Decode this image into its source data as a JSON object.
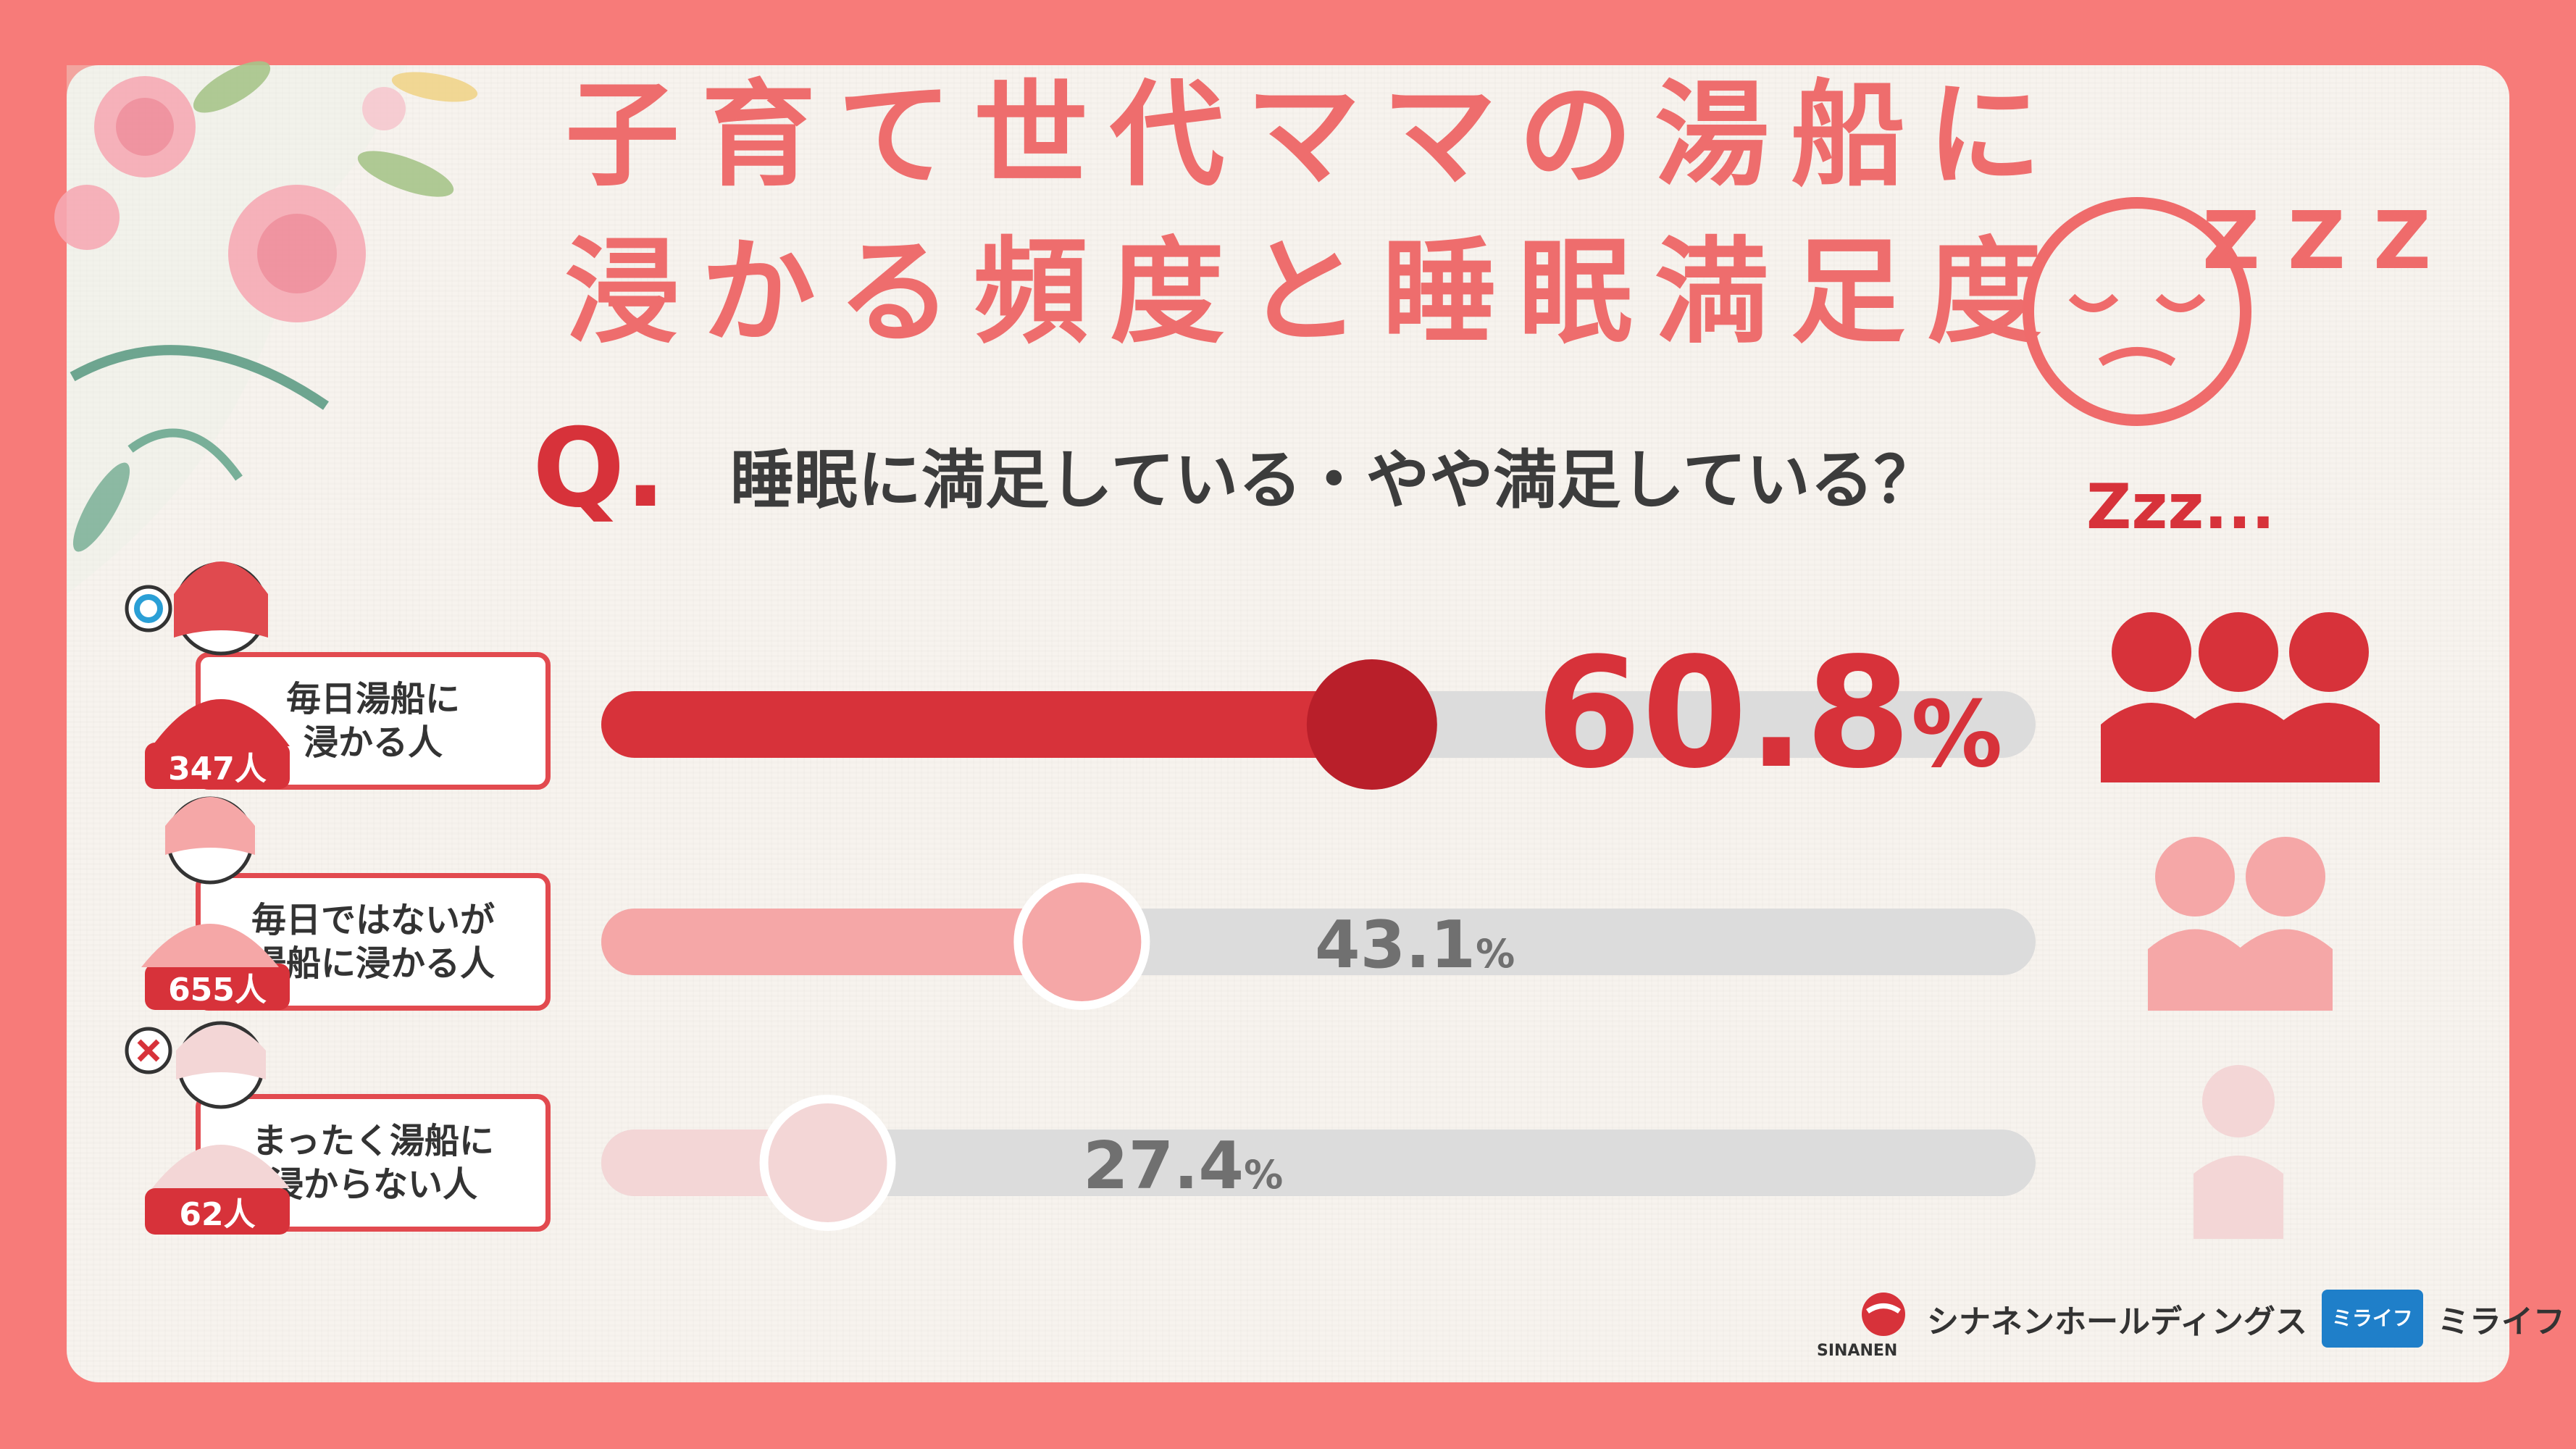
{
  "title_line1": "子育て世代ママの湯船に",
  "title_line2": "浸かる頻度と睡眠満足度",
  "question_mark": "Q.",
  "question": "睡眠に満足している・やや満足している？",
  "zzz_label": "Zzz...",
  "zzz_icon_text": "Z Z Z",
  "groups": [
    {
      "label": "毎日湯船に\n浸かる人",
      "count": "347人",
      "pct_num": "60.8",
      "pct_unit": "%"
    },
    {
      "label": "毎日ではないが\n湯船に浸かる人",
      "count": "655人",
      "pct_num": "43.1",
      "pct_unit": "%"
    },
    {
      "label": "まったく湯船に\n浸からない人",
      "count": "62人",
      "pct_num": "27.4",
      "pct_unit": "%"
    }
  ],
  "chart_data": {
    "type": "bar",
    "categories": [
      "毎日湯船に浸かる人",
      "毎日ではないが湯船に浸かる人",
      "まったく湯船に浸からない人"
    ],
    "values": [
      60.8,
      43.1,
      27.4
    ],
    "ylim": [
      0,
      100
    ],
    "colors": [
      "#d7323a",
      "#f5a7a7",
      "#f3d6d6"
    ]
  },
  "logos": {
    "sinanen": "シナネンホールディングス",
    "sinanen_en": "SINANEN",
    "milife_badge": "ミライフ",
    "milife": "ミライフ"
  }
}
